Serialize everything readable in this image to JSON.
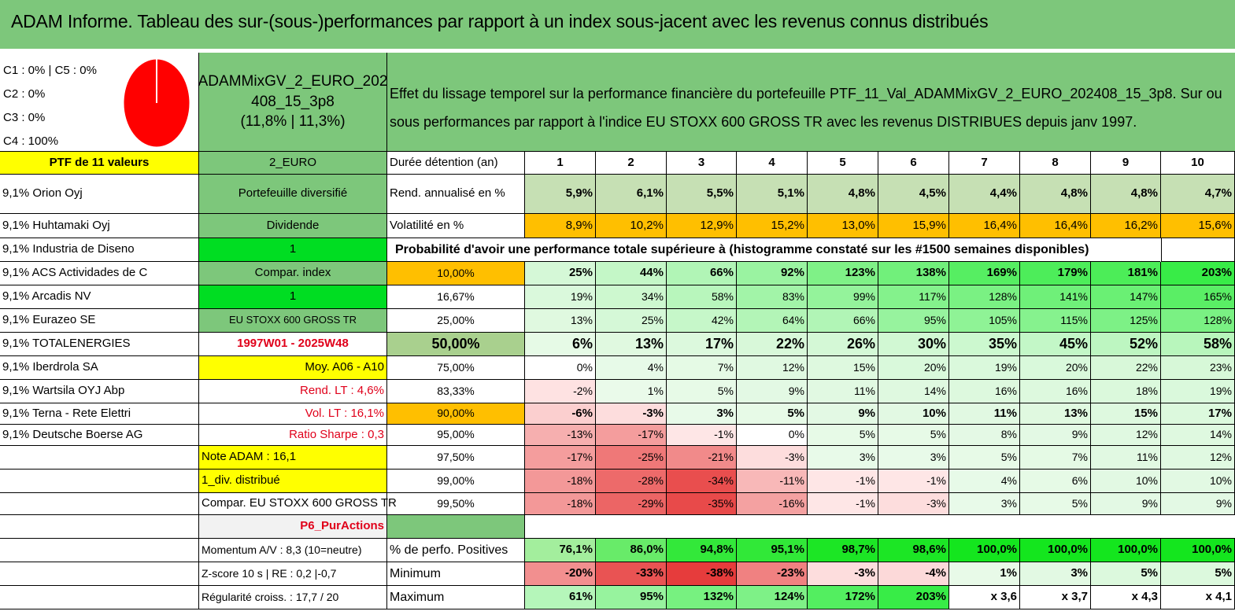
{
  "title": "ADAM Informe. Tableau des sur-(sous-)performances par rapport à un index sous-jacent avec les revenus connus distribués",
  "allocation": {
    "lines": [
      "C1 : 0% | C5 : 0%",
      "C2 : 0%",
      "C3 : 0%",
      "C4 : 100%"
    ],
    "pie_color": "#ff0000"
  },
  "fund": {
    "name_line1": "ADAMMixGV_2_EURO_202",
    "name_line2": "408_15_3p8",
    "perf": "(11,8% | 11,3%)"
  },
  "description": "Effet du lissage temporel sur la performance financière du portefeuille PTF_11_Val_ADAMMixGV_2_EURO_202408_15_3p8. Sur ou sous performances par rapport à l'indice EU STOXX 600 GROSS TR avec les revenus DISTRIBUES depuis janv 1997.",
  "portfolio_header": "PTF de 11 valeurs",
  "holdings": [
    "9,1% Orion Oyj",
    "9,1% Huhtamaki Oyj",
    "9,1% Industria de Diseno",
    "9,1% ACS Actividades de C",
    "9,1% Arcadis NV",
    "9,1% Eurazeo SE",
    "9,1% TOTALENERGIES",
    "9,1% Iberdrola SA",
    "9,1% Wartsila OYJ Abp",
    "9,1% Terna - Rete Elettri",
    "9,1% Deutsche Boerse AG"
  ],
  "info_col": {
    "currency": "2_EURO",
    "type": "Portefeuille diversifié",
    "dividende": "Dividende",
    "val1": "1",
    "compar_index": "Compar. index",
    "val2": "1",
    "index_name": "EU STOXX 600 GROSS TR",
    "period": "1997W01 - 2025W48",
    "moy": "Moy. A06 - A10",
    "rend_lt": "Rend. LT : 4,6%",
    "vol_lt": "Vol. LT : 16,1%",
    "sharpe": "Ratio Sharpe : 0,3",
    "note": "Note ADAM : 16,1",
    "div": "1_div. distribué",
    "compar": "Compar. EU STOXX 600 GROSS TR",
    "p6": "P6_PurActions",
    "momentum": "Momentum A/V : 8,3 (10=neutre)",
    "zscore": "Z-score 10 s | RE : 0,2 |-0,7",
    "regularite": "Régularité croiss. : 17,7 / 20"
  },
  "table": {
    "duration_label": "Durée détention (an)",
    "years": [
      "1",
      "2",
      "3",
      "4",
      "5",
      "6",
      "7",
      "8",
      "9",
      "10"
    ],
    "rend_label": "Rend. annualisé en %",
    "rend": [
      "5,9%",
      "6,1%",
      "5,5%",
      "5,1%",
      "4,8%",
      "4,5%",
      "4,4%",
      "4,8%",
      "4,8%",
      "4,7%"
    ],
    "vol_label": "Volatilité en %",
    "vol": [
      "8,9%",
      "10,2%",
      "12,9%",
      "15,2%",
      "13,0%",
      "15,9%",
      "16,4%",
      "16,4%",
      "16,2%",
      "15,6%"
    ],
    "prob_title": "Probabilité d'avoir une performance totale supérieure à (histogramme constaté sur les #1500 semaines disponibles)",
    "prob_rows": [
      {
        "p": "10,00%",
        "v": [
          "25%",
          "44%",
          "66%",
          "92%",
          "123%",
          "138%",
          "169%",
          "179%",
          "181%",
          "203%"
        ]
      },
      {
        "p": "16,67%",
        "v": [
          "19%",
          "34%",
          "58%",
          "83%",
          "99%",
          "117%",
          "128%",
          "141%",
          "147%",
          "165%"
        ]
      },
      {
        "p": "25,00%",
        "v": [
          "13%",
          "25%",
          "42%",
          "64%",
          "66%",
          "95%",
          "105%",
          "115%",
          "125%",
          "128%"
        ]
      },
      {
        "p": "50,00%",
        "v": [
          "6%",
          "13%",
          "17%",
          "22%",
          "26%",
          "30%",
          "35%",
          "45%",
          "52%",
          "58%"
        ]
      },
      {
        "p": "75,00%",
        "v": [
          "0%",
          "4%",
          "7%",
          "12%",
          "15%",
          "20%",
          "19%",
          "20%",
          "22%",
          "23%"
        ]
      },
      {
        "p": "83,33%",
        "v": [
          "-2%",
          "1%",
          "5%",
          "9%",
          "11%",
          "14%",
          "16%",
          "16%",
          "18%",
          "19%"
        ]
      },
      {
        "p": "90,00%",
        "v": [
          "-6%",
          "-3%",
          "3%",
          "5%",
          "9%",
          "10%",
          "11%",
          "13%",
          "15%",
          "17%"
        ]
      },
      {
        "p": "95,00%",
        "v": [
          "-13%",
          "-17%",
          "-1%",
          "0%",
          "5%",
          "5%",
          "8%",
          "9%",
          "12%",
          "14%"
        ]
      },
      {
        "p": "97,50%",
        "v": [
          "-17%",
          "-25%",
          "-21%",
          "-3%",
          "3%",
          "3%",
          "5%",
          "7%",
          "11%",
          "12%"
        ]
      },
      {
        "p": "99,00%",
        "v": [
          "-18%",
          "-28%",
          "-34%",
          "-11%",
          "-1%",
          "-1%",
          "4%",
          "6%",
          "10%",
          "10%"
        ]
      },
      {
        "p": "99,50%",
        "v": [
          "-18%",
          "-29%",
          "-35%",
          "-16%",
          "-1%",
          "-3%",
          "3%",
          "5%",
          "9%",
          "9%"
        ]
      }
    ],
    "pos_label": "% de perfo. Positives",
    "pos": [
      "76,1%",
      "86,0%",
      "94,8%",
      "95,1%",
      "98,7%",
      "98,6%",
      "100,0%",
      "100,0%",
      "100,0%",
      "100,0%"
    ],
    "min_label": "Minimum",
    "min": [
      "-20%",
      "-33%",
      "-38%",
      "-23%",
      "-3%",
      "-4%",
      "1%",
      "3%",
      "5%",
      "5%"
    ],
    "max_label": "Maximum",
    "max": [
      "61%",
      "95%",
      "132%",
      "124%",
      "172%",
      "203%",
      "x 3,6",
      "x 3,7",
      "x 4,3",
      "x 4,1"
    ]
  },
  "colors": {
    "title_green": "#7dc77b",
    "yellow": "#ffff00",
    "bright_green": "#00dd22",
    "orange": "#ffbf00",
    "red_text": "#e0001a"
  }
}
